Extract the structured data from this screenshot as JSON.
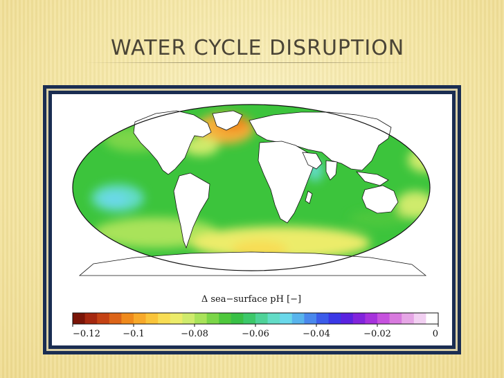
{
  "slide": {
    "title": "WATER CYCLE DISRUPTION"
  },
  "map": {
    "projection": "mollweide",
    "variable_label": "Δ sea−surface pH [−]",
    "colors": {
      "land": "#ffffff",
      "ocean_base": "#3cc43c",
      "coast": "#111111",
      "frame": "#1a2d52",
      "frame_border": "#d9cfa6"
    }
  },
  "colorbar": {
    "min": -0.12,
    "max": 0,
    "colors": [
      "#7a1508",
      "#a52810",
      "#c44214",
      "#dc6418",
      "#ef8a1c",
      "#f7a92a",
      "#f9c43a",
      "#f8dd54",
      "#ecec6a",
      "#cfeb6c",
      "#a9e35a",
      "#7bd648",
      "#4ec83c",
      "#38c046",
      "#3cc86a",
      "#4ed298",
      "#62dcc6",
      "#6ad8ea",
      "#58b4ec",
      "#4a88ec",
      "#3c5cea",
      "#3a38e6",
      "#5a22e0",
      "#8224dc",
      "#a632dc",
      "#c652de",
      "#d87ade",
      "#e6a6e6",
      "#f2d0f2",
      "#ffffff"
    ],
    "ticks": [
      {
        "value": -0.12,
        "label": "−0.12"
      },
      {
        "value": -0.1,
        "label": "−0.1"
      },
      {
        "value": -0.08,
        "label": "−0.08"
      },
      {
        "value": -0.06,
        "label": "−0.06"
      },
      {
        "value": -0.04,
        "label": "−0.04"
      },
      {
        "value": -0.02,
        "label": "−0.02"
      },
      {
        "value": 0,
        "label": "0"
      }
    ]
  }
}
